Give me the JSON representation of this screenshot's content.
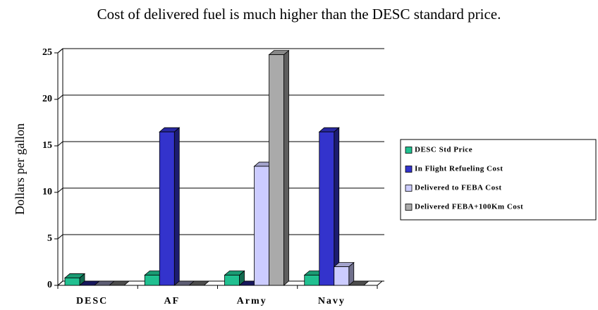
{
  "chart_data": {
    "type": "bar3d",
    "title": "Cost of delivered fuel is much higher than the DESC standard price.",
    "y_label": "Dollars per gallon",
    "categories": [
      "DESC",
      "AF",
      "Army",
      "Navy"
    ],
    "series": [
      {
        "name": "DESC Std Price",
        "color": "#20c090",
        "values": [
          0.8,
          1.1,
          1.1,
          1.1
        ]
      },
      {
        "name": "In Flight Refueling Cost",
        "color": "#3333cc",
        "values": [
          0,
          16.5,
          0,
          16.5
        ]
      },
      {
        "name": "Delivered to FEBA Cost",
        "color": "#ccccff",
        "values": [
          0,
          0,
          12.8,
          2.0
        ]
      },
      {
        "name": "Delivered FEBA+100Km Cost",
        "color": "#aaaaaa",
        "values": [
          0,
          0,
          24.8,
          0
        ]
      }
    ],
    "ylim": [
      0,
      25
    ],
    "yticks": [
      0,
      5,
      10,
      15,
      20,
      25
    ],
    "grid": true,
    "legend": "right"
  }
}
